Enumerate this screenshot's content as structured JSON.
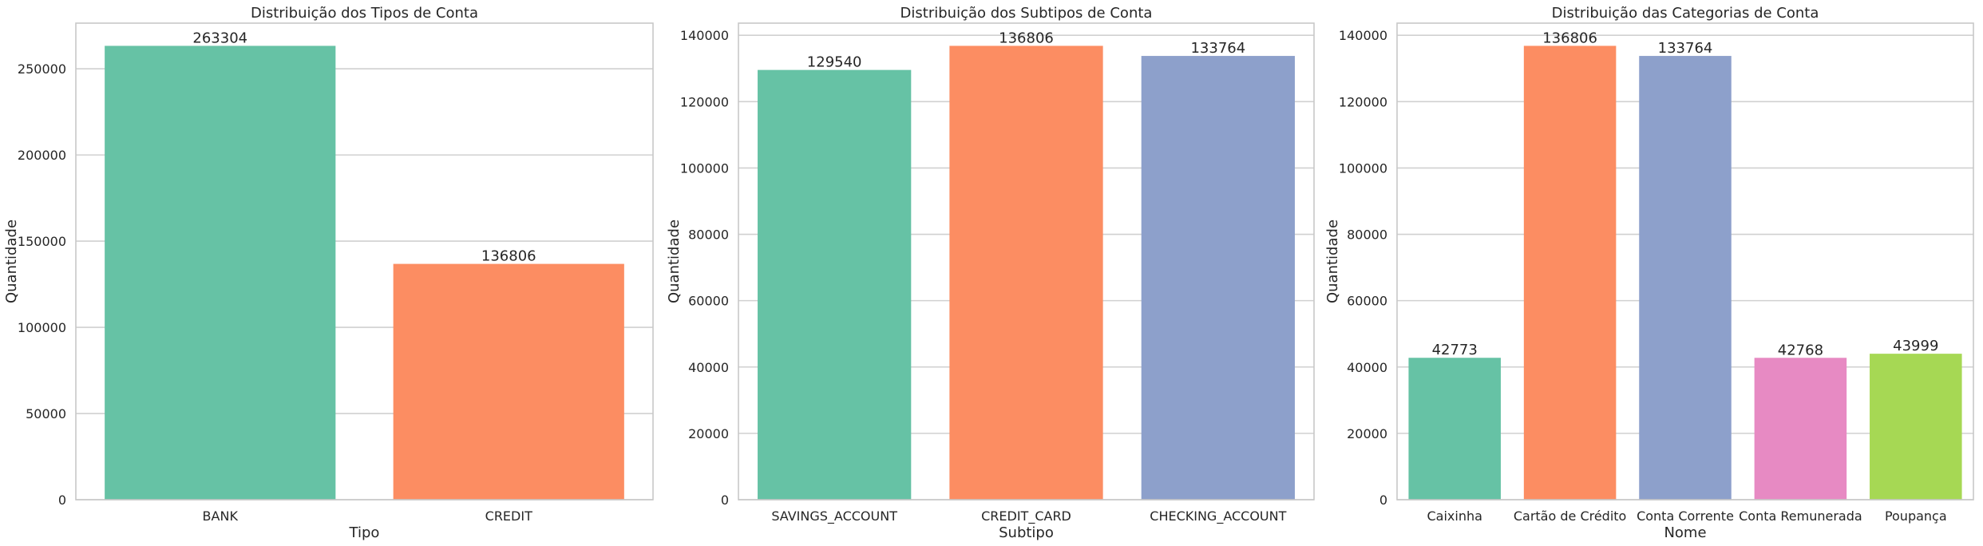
{
  "colors": {
    "green": "#66c2a5",
    "orange": "#fc8d62",
    "blue": "#8da0cb",
    "pink": "#e78ac3",
    "lime": "#a6d854",
    "grid": "#d0d0d0",
    "axis_frame": "#c8c8c8",
    "text": "#262626"
  },
  "chart_data": [
    {
      "type": "bar",
      "title": "Distribuição dos Tipos de Conta",
      "xlabel": "Tipo",
      "ylabel": "Quantidade",
      "categories": [
        "BANK",
        "CREDIT"
      ],
      "values": [
        263304,
        136806
      ],
      "data_labels": [
        "263304",
        "136806"
      ],
      "bar_colors": [
        "#66c2a5",
        "#fc8d62"
      ],
      "ylim": [
        0,
        276469
      ],
      "yticks": [
        0,
        50000,
        100000,
        150000,
        200000,
        250000
      ],
      "ytick_labels": [
        "0",
        "50000",
        "100000",
        "150000",
        "200000",
        "250000"
      ],
      "grid": "horizontal",
      "legend": "none"
    },
    {
      "type": "bar",
      "title": "Distribuição dos Subtipos de Conta",
      "xlabel": "Subtipo",
      "ylabel": "Quantidade",
      "categories": [
        "SAVINGS_ACCOUNT",
        "CREDIT_CARD",
        "CHECKING_ACCOUNT"
      ],
      "values": [
        129540,
        136806,
        133764
      ],
      "data_labels": [
        "129540",
        "136806",
        "133764"
      ],
      "bar_colors": [
        "#66c2a5",
        "#fc8d62",
        "#8da0cb"
      ],
      "ylim": [
        0,
        143646
      ],
      "yticks": [
        0,
        20000,
        40000,
        60000,
        80000,
        100000,
        120000,
        140000
      ],
      "ytick_labels": [
        "0",
        "20000",
        "40000",
        "60000",
        "80000",
        "100000",
        "120000",
        "140000"
      ],
      "grid": "horizontal",
      "legend": "none"
    },
    {
      "type": "bar",
      "title": "Distribuição das Categorias de Conta",
      "xlabel": "Nome",
      "ylabel": "Quantidade",
      "categories": [
        "Caixinha",
        "Cartão de Crédito",
        "Conta Corrente",
        "Conta Remunerada",
        "Poupança"
      ],
      "values": [
        42773,
        136806,
        133764,
        42768,
        43999
      ],
      "data_labels": [
        "42773",
        "136806",
        "133764",
        "42768",
        "43999"
      ],
      "bar_colors": [
        "#66c2a5",
        "#fc8d62",
        "#8da0cb",
        "#e78ac3",
        "#a6d854"
      ],
      "ylim": [
        0,
        143646
      ],
      "yticks": [
        0,
        20000,
        40000,
        60000,
        80000,
        100000,
        120000,
        140000
      ],
      "ytick_labels": [
        "0",
        "20000",
        "40000",
        "60000",
        "80000",
        "100000",
        "120000",
        "140000"
      ],
      "grid": "horizontal",
      "legend": "none"
    }
  ]
}
